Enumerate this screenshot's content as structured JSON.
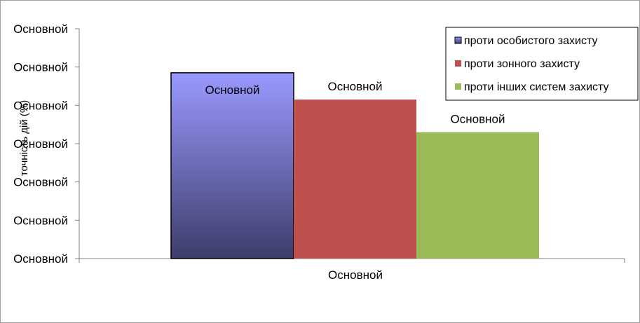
{
  "chart_data": {
    "type": "bar",
    "ylabel": "точність дій (%)",
    "y_tick_labels": [
      "Основной",
      "Основной",
      "Основной",
      "Основной",
      "Основной",
      "Основной",
      "Основной"
    ],
    "categories": [
      "Основной"
    ],
    "ylim": [
      0,
      6
    ],
    "grid": false,
    "legend_position": "top-right",
    "series": [
      {
        "name": "проти особистого захисту",
        "values": [
          4.85
        ],
        "data_label": "Основной",
        "color": "#9999ff",
        "gradient_to": "#3d3d6b",
        "outlined": true
      },
      {
        "name": "проти зонного захисту",
        "values": [
          4.15
        ],
        "data_label": "Основной",
        "color": "#c0504d"
      },
      {
        "name": "проти інших систем захисту",
        "values": [
          3.3
        ],
        "data_label": "Основной",
        "color": "#9bbb59"
      }
    ]
  }
}
